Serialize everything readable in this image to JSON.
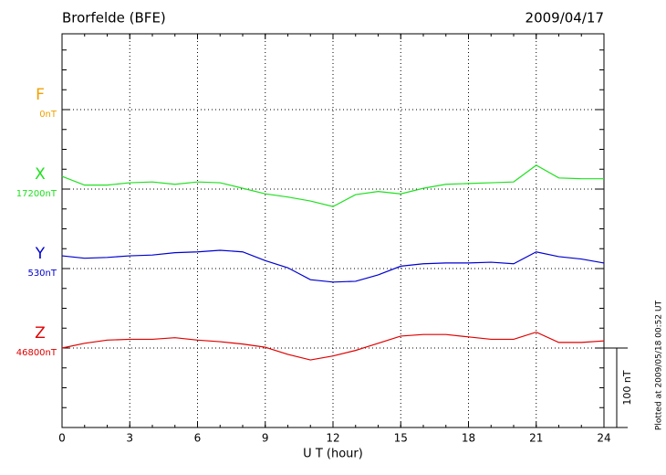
{
  "chart_data": {
    "type": "line",
    "title": "Brorfelde (BFE)",
    "date": "2009/04/17",
    "x_label": "U T (hour)",
    "xlim": [
      0,
      24
    ],
    "xticks": [
      0,
      3,
      6,
      9,
      12,
      15,
      18,
      21,
      24
    ],
    "x": [
      0,
      1,
      2,
      3,
      4,
      5,
      6,
      7,
      8,
      9,
      10,
      11,
      12,
      13,
      14,
      15,
      16,
      17,
      18,
      19,
      20,
      21,
      22,
      23,
      24
    ],
    "grid": true,
    "scale_bar": {
      "value": 100,
      "label": "100 nT"
    },
    "footnote": "Plotted at 2009/05/18 00:52 UT",
    "series": [
      {
        "name": "F",
        "color": "#f0a000",
        "baseline": {
          "value": 0,
          "label": "0nT"
        }
      },
      {
        "name": "X",
        "color": "#20e020",
        "baseline": {
          "value": 17200,
          "label": "17200nT"
        },
        "values": [
          17216,
          17205,
          17205,
          17208,
          17209,
          17206,
          17209,
          17208,
          17201,
          17194,
          17190,
          17185,
          17178,
          17193,
          17197,
          17194,
          17201,
          17206,
          17207,
          17208,
          17209,
          17230,
          17214,
          17213,
          17213
        ]
      },
      {
        "name": "Y",
        "color": "#0000d0",
        "baseline": {
          "value": 530,
          "label": "530nT"
        },
        "values": [
          546,
          543,
          544,
          546,
          547,
          550,
          551,
          553,
          551,
          540,
          531,
          516,
          513,
          514,
          522,
          533,
          536,
          537,
          537,
          538,
          536,
          551,
          545,
          542,
          537
        ]
      },
      {
        "name": "Z",
        "color": "#e00000",
        "baseline": {
          "value": 46800,
          "label": "46800nT"
        },
        "values": [
          46800,
          46806,
          46810,
          46811,
          46811,
          46813,
          46810,
          46808,
          46805,
          46801,
          46792,
          46785,
          46790,
          46797,
          46806,
          46815,
          46817,
          46817,
          46814,
          46811,
          46811,
          46820,
          46807,
          46807,
          46809
        ]
      }
    ]
  }
}
